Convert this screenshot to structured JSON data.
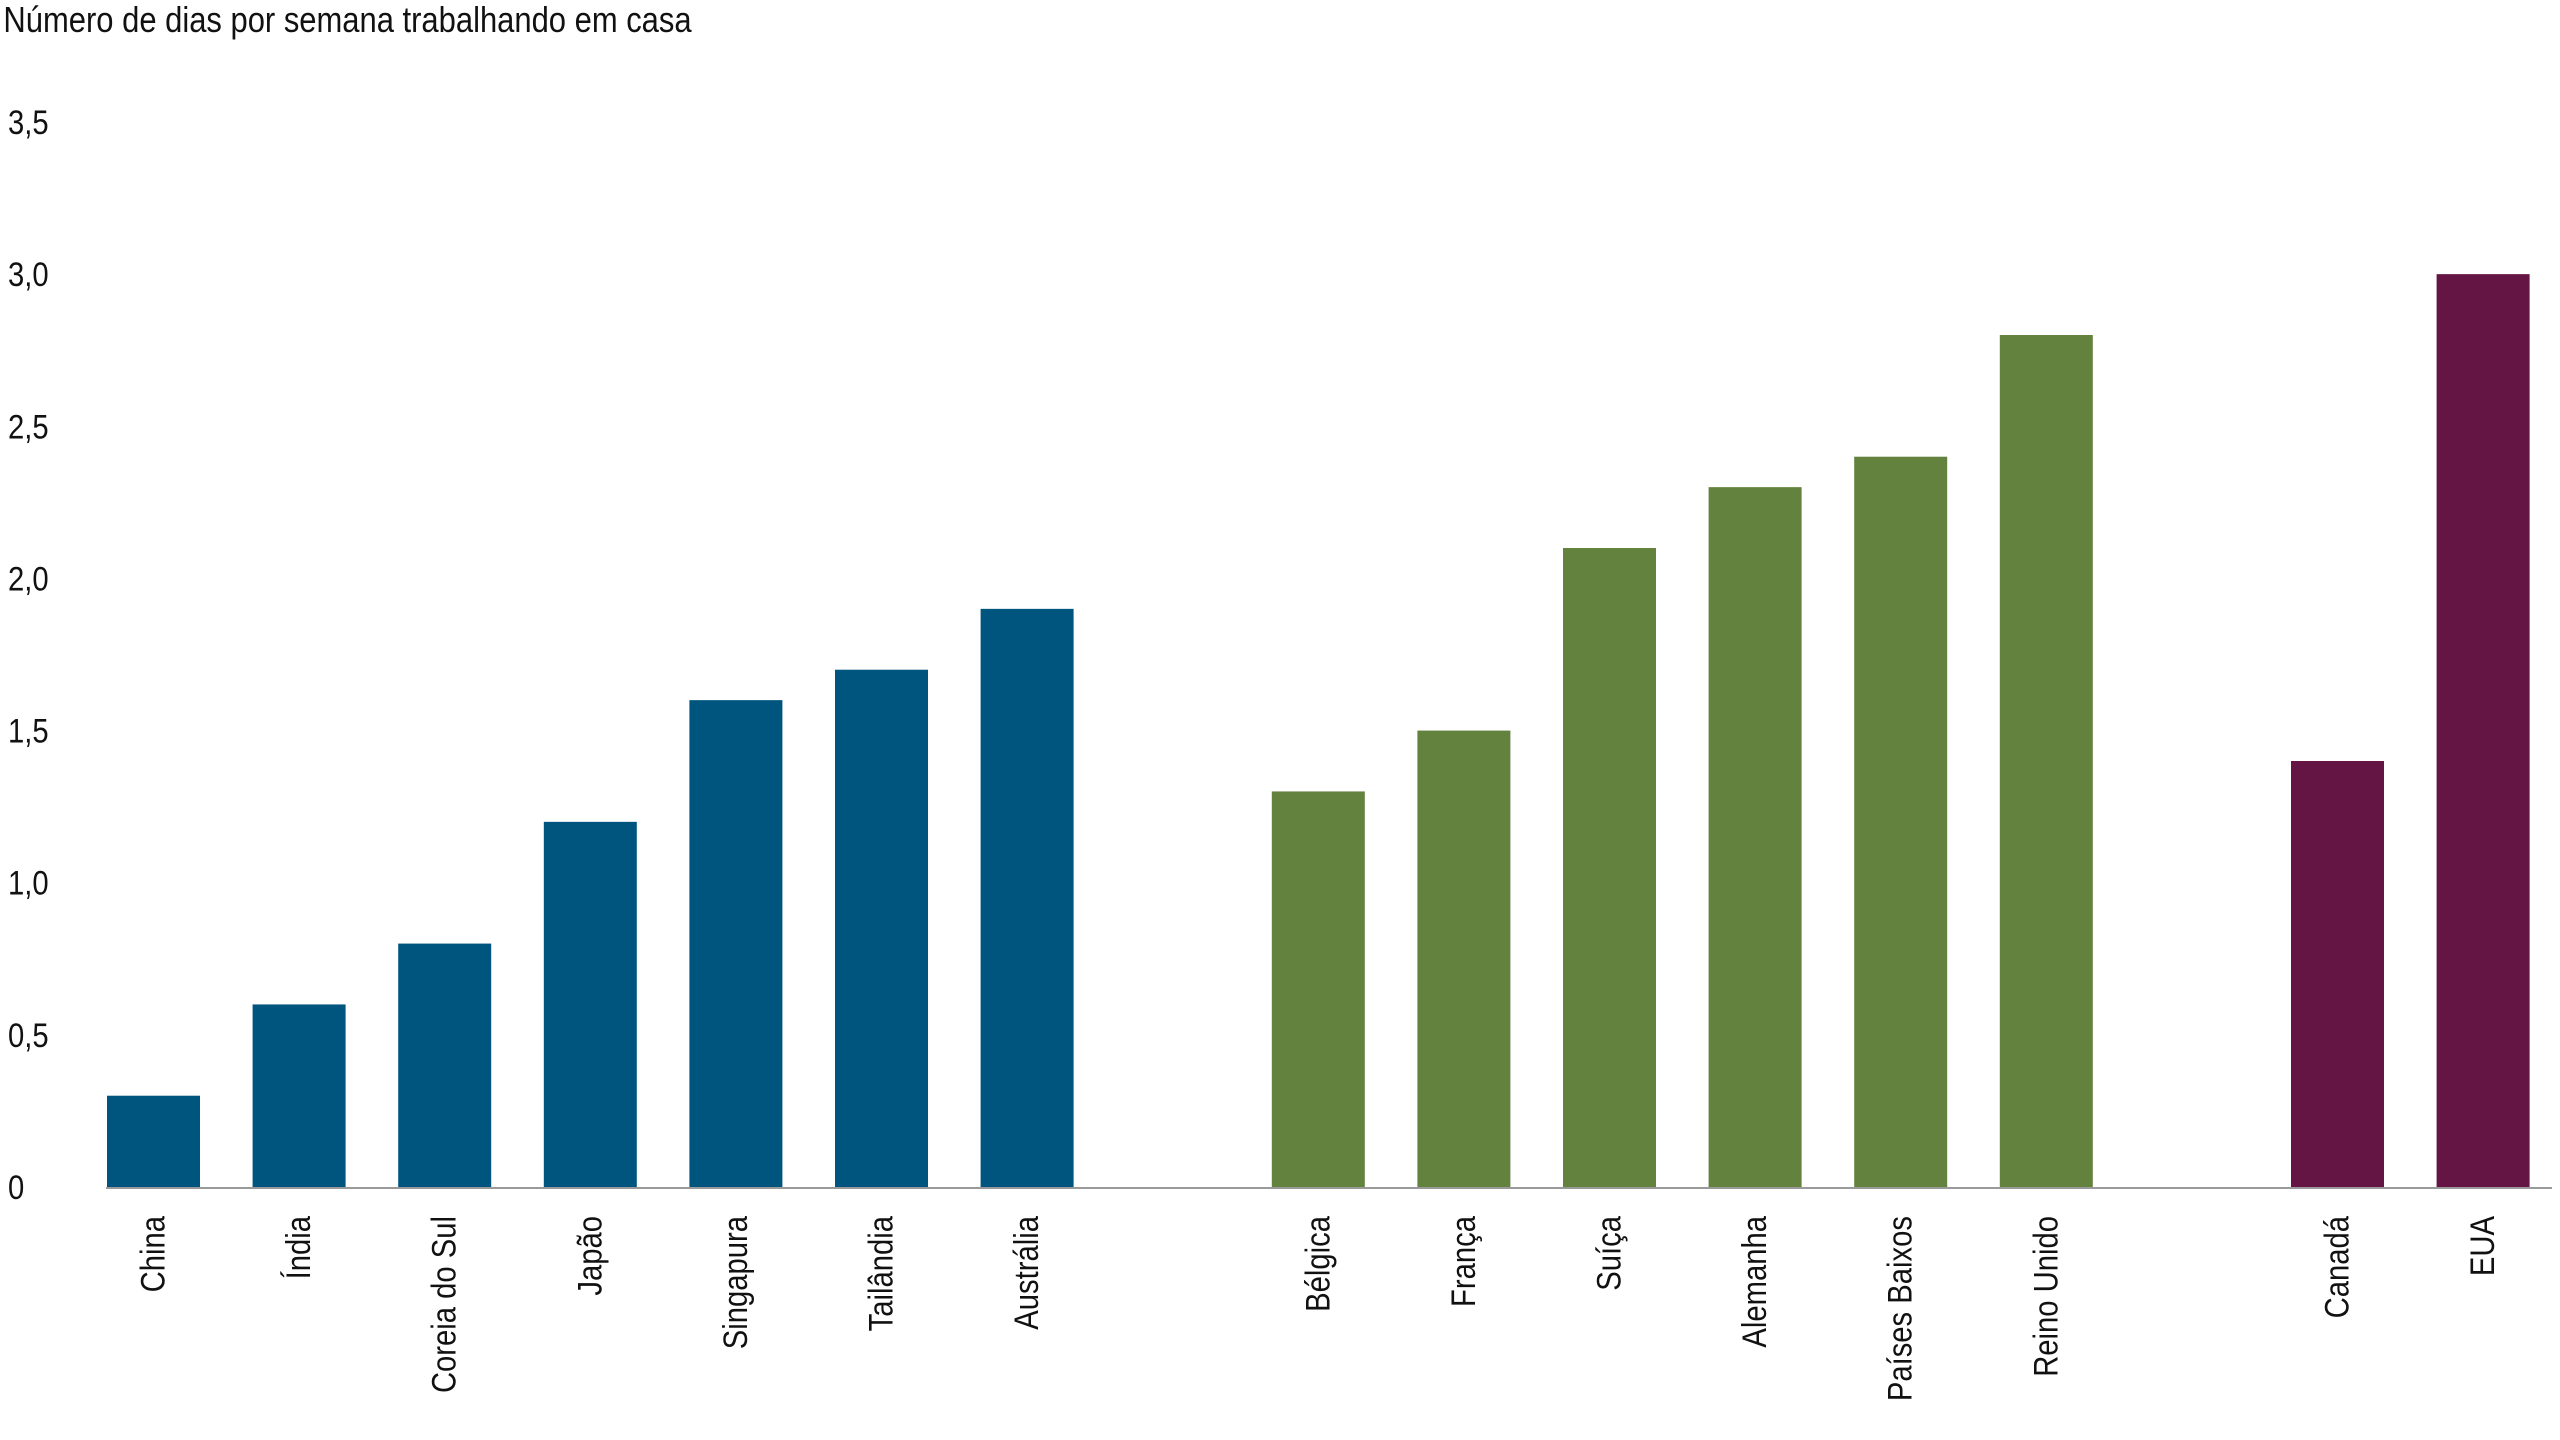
{
  "chart_data": {
    "type": "bar",
    "title": "Número de dias por semana trabalhando em casa",
    "xlabel": "",
    "ylabel": "",
    "ylim": [
      0,
      3.5
    ],
    "yticks": [
      "0",
      "0,5",
      "1,0",
      "1,5",
      "2,0",
      "2,5",
      "3,0",
      "3,5"
    ],
    "grid": false,
    "legend": "none",
    "groups": [
      {
        "color": "#00557f",
        "categories": [
          "China",
          "Índia",
          "Coreia do Sul",
          "Japão",
          "Singapura",
          "Tailândia",
          "Austrália"
        ],
        "values": [
          0.3,
          0.6,
          0.8,
          1.2,
          1.6,
          1.7,
          1.9
        ]
      },
      {
        "color": "#62823e",
        "categories": [
          "Bélgica",
          "França",
          "Suíça",
          "Alemanha",
          "Países Baixos",
          "Reino Unido"
        ],
        "values": [
          1.3,
          1.5,
          2.1,
          2.3,
          2.4,
          2.8
        ]
      },
      {
        "color": "#641543",
        "categories": [
          "Canadá",
          "EUA"
        ],
        "values": [
          1.4,
          3.0
        ]
      }
    ]
  }
}
